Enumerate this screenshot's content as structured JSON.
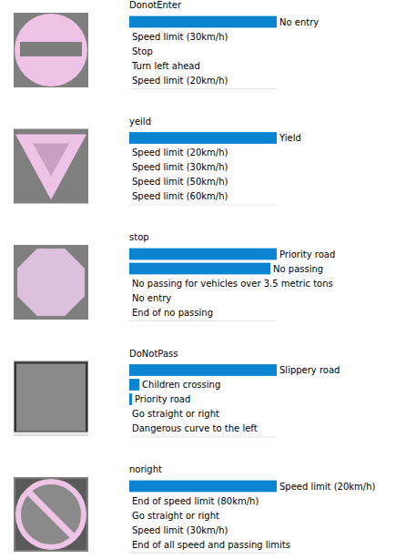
{
  "chart_data": [
    {
      "type": "bar",
      "title": "DonotEnter",
      "orientation": "horizontal",
      "categories": [
        "No entry",
        "Speed limit (30km/h)",
        "Stop",
        "Turn left ahead",
        "Speed limit (20km/h)"
      ],
      "values": [
        1.0,
        0,
        0,
        0,
        0
      ],
      "color": "#0a84d0",
      "xlim": [
        0,
        1
      ],
      "xticks": [],
      "tick_labels": false
    },
    {
      "type": "bar",
      "title": "yeild",
      "orientation": "horizontal",
      "categories": [
        "Yield",
        "Speed limit (20km/h)",
        "Speed limit (30km/h)",
        "Speed limit (50km/h)",
        "Speed limit (60km/h)"
      ],
      "values": [
        1.0,
        0,
        0,
        0,
        0
      ],
      "color": "#0a84d0",
      "xlim": [
        0,
        1
      ],
      "xticks": [],
      "tick_labels": false
    },
    {
      "type": "bar",
      "title": "stop",
      "orientation": "horizontal",
      "categories": [
        "Priority road",
        "No passing",
        "No passing for vehicles over 3.5 metric tons",
        "No entry",
        "End of no passing"
      ],
      "values": [
        0.51,
        0.488,
        0,
        0,
        0
      ],
      "color": "#0a84d0",
      "xlim": [
        0,
        0.51
      ],
      "xticks": [],
      "tick_labels": false
    },
    {
      "type": "bar",
      "title": "DoNotPass",
      "orientation": "horizontal",
      "categories": [
        "Slippery road",
        "Children crossing",
        "Priority road",
        "Go straight or right",
        "Dangerous curve to the left"
      ],
      "values": [
        0.92,
        0.063,
        0.017,
        0,
        0
      ],
      "color": "#0a84d0",
      "xlim": [
        0,
        0.92
      ],
      "xticks": [],
      "tick_labels": false
    },
    {
      "type": "bar",
      "title": "noright",
      "orientation": "horizontal",
      "categories": [
        "Speed limit (20km/h)",
        "End of speed limit (80km/h)",
        "Go straight or right",
        "Speed limit (30km/h)",
        "End of all speed and passing limits"
      ],
      "values": [
        1.0,
        0,
        0,
        0,
        0
      ],
      "color": "#0a84d0",
      "xlim": [
        0,
        1
      ],
      "xticks": [],
      "tick_labels": false
    }
  ]
}
